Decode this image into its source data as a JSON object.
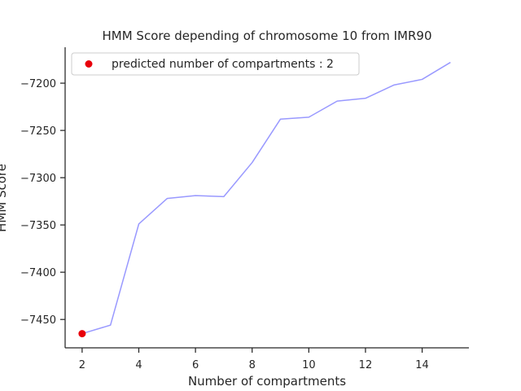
{
  "chart_data": {
    "type": "line",
    "title": "HMM Score depending of chromosome 10 from IMR90",
    "xlabel": "Number of compartments",
    "ylabel": "HMM Score",
    "xlim": [
      1.4,
      15.65
    ],
    "ylim": [
      -7480,
      -7162
    ],
    "x_ticks": [
      2,
      4,
      6,
      8,
      10,
      12,
      14
    ],
    "y_ticks": [
      -7450,
      -7400,
      -7350,
      -7300,
      -7250,
      -7200
    ],
    "x_tick_labels": [
      "2",
      "4",
      "6",
      "8",
      "10",
      "12",
      "14"
    ],
    "y_tick_labels": [
      "−7450",
      "−7400",
      "−7350",
      "−7300",
      "−7250",
      "−7200"
    ],
    "grid": false,
    "legend_position": "top-left",
    "series": [
      {
        "color": "#9999ff",
        "x": [
          2,
          3,
          4,
          5,
          6,
          7,
          8,
          9,
          10,
          11,
          12,
          13,
          14,
          15
        ],
        "y": [
          -7465,
          -7456,
          -7349,
          -7322,
          -7319,
          -7320,
          -7284,
          -7238,
          -7236,
          -7219,
          -7216,
          -7202,
          -7196,
          -7178
        ]
      },
      {
        "name": "predicted number of compartments : 2",
        "type": "scatter",
        "color": "#e8000b",
        "x": [
          2
        ],
        "y": [
          -7465
        ]
      }
    ]
  }
}
